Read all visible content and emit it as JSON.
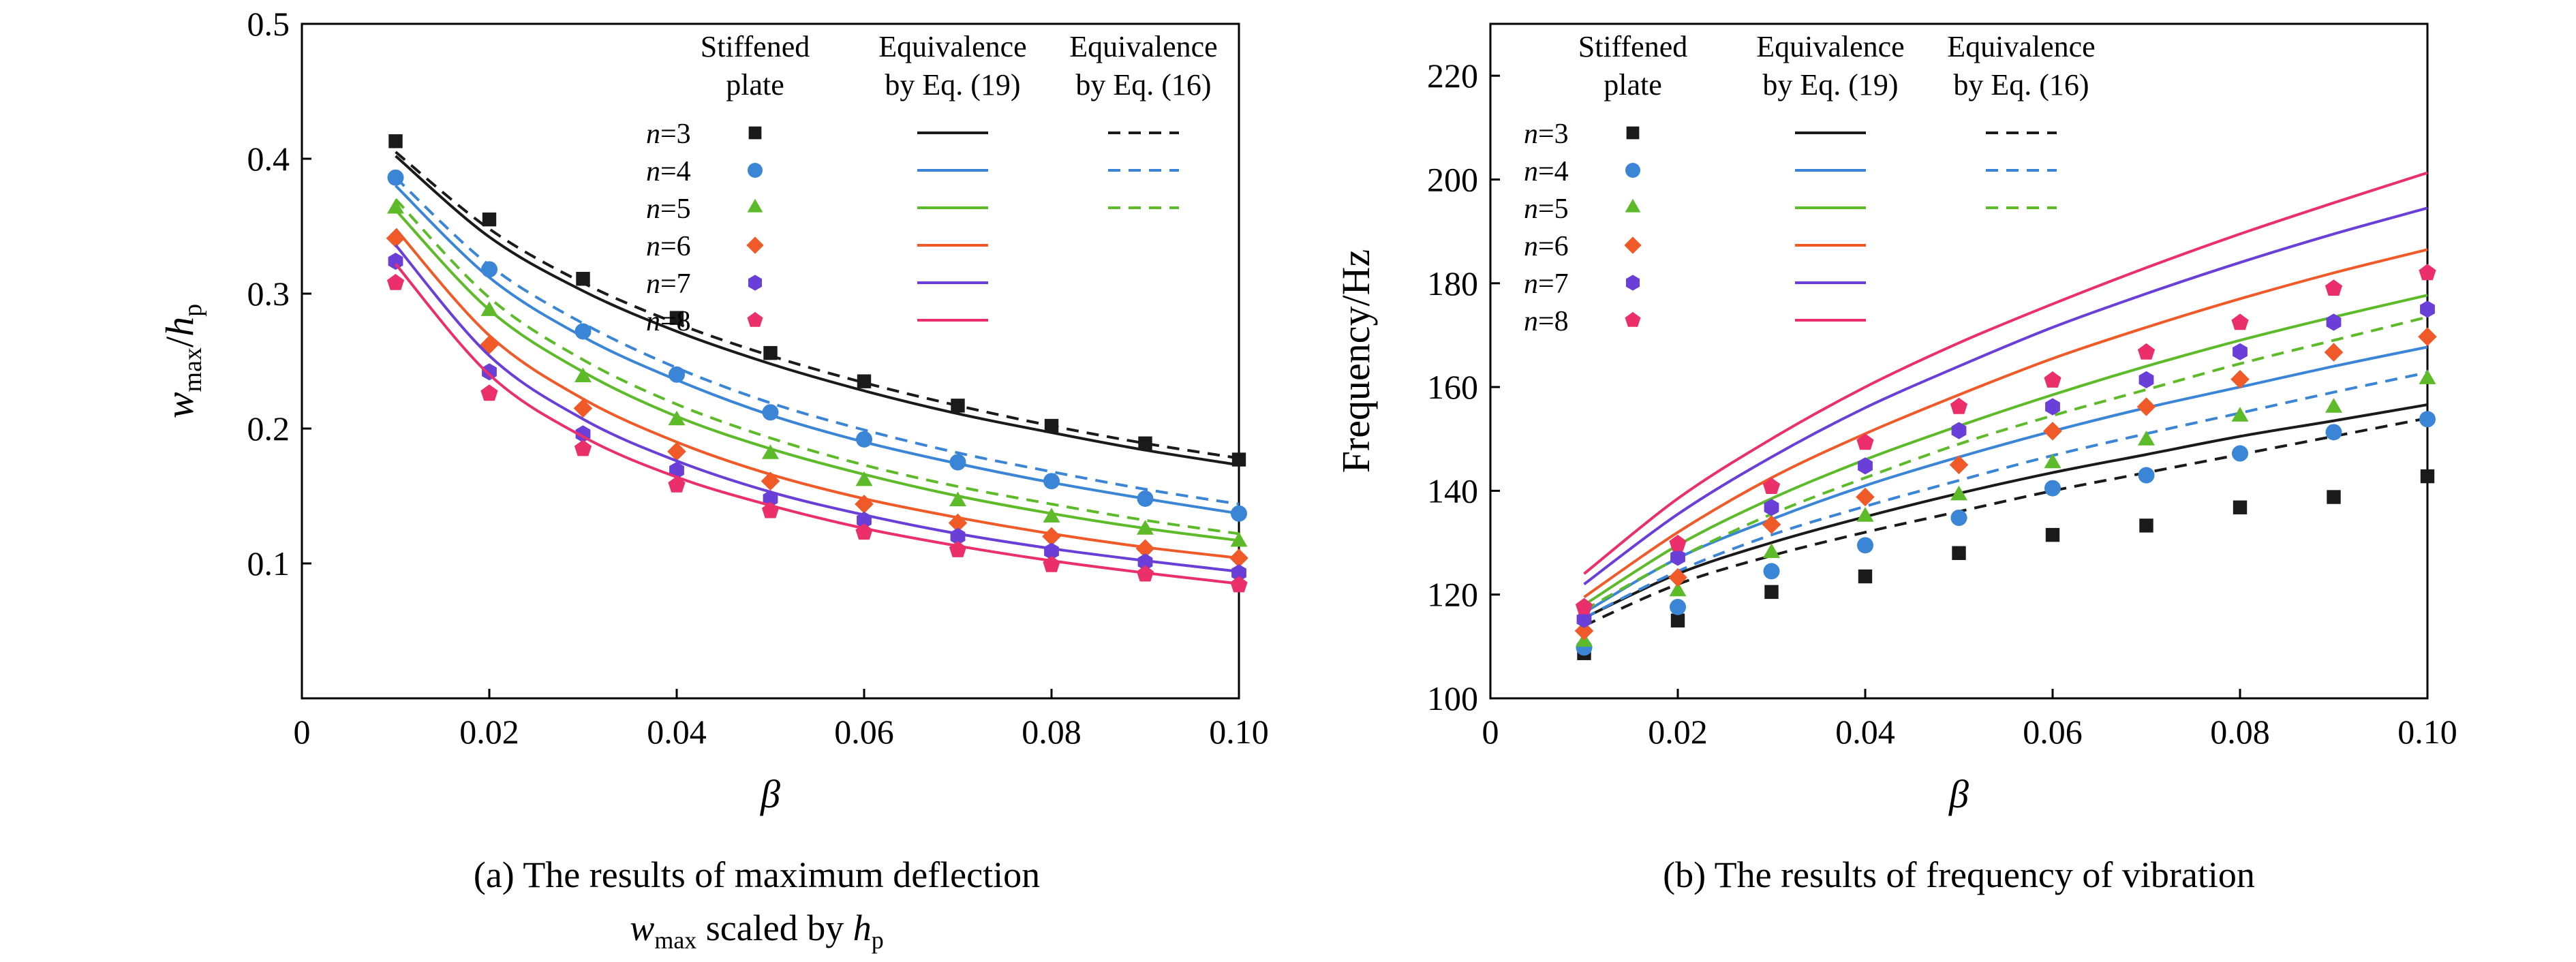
{
  "chart_data": [
    {
      "type": "scatter",
      "panel_caption_line1": "(a) The results of maximum deflection",
      "panel_caption_line2": {
        "main": "w",
        "main_sub": "max",
        "mid": " scaled by ",
        "tail": "h",
        "tail_sub": "p"
      },
      "xlabel": "β",
      "ylabel": {
        "main": "w",
        "main_sub": "max",
        "sep": "/",
        "tail": "h",
        "tail_sub": "p"
      },
      "xlim": [
        0,
        0.1
      ],
      "ylim": [
        0,
        0.5
      ],
      "xticks": [
        0,
        0.02,
        0.04,
        0.06,
        0.08,
        0.1
      ],
      "xtick_labels": [
        "0",
        "0.02",
        "0.04",
        "0.06",
        "0.08",
        "0.10"
      ],
      "yticks": [
        0.1,
        0.2,
        0.3,
        0.4,
        0.5
      ],
      "ytick_labels": [
        "0.1",
        "0.2",
        "0.3",
        "0.4",
        "0.5"
      ],
      "legend": {
        "placement": "top-right",
        "headers": [
          [
            "Stiffened",
            "plate"
          ],
          [
            "Equivalence",
            "by Eq. (19)"
          ],
          [
            "Equivalence",
            "by Eq. (16)"
          ]
        ],
        "rows": [
          "n=3",
          "n=4",
          "n=5",
          "n=6",
          "n=7",
          "n=8"
        ],
        "dashed_rows": 3
      },
      "x": [
        0.01,
        0.02,
        0.03,
        0.04,
        0.05,
        0.06,
        0.07,
        0.08,
        0.09,
        0.1
      ],
      "series": [
        {
          "name": "n=3",
          "color": "#1a1a1a",
          "marker": "square",
          "stiffened": [
            0.413,
            0.355,
            0.311,
            0.282,
            0.256,
            0.235,
            0.217,
            0.202,
            0.189,
            0.177
          ],
          "eq19": [
            0.402,
            0.342,
            0.302,
            0.272,
            0.248,
            0.228,
            0.211,
            0.197,
            0.184,
            0.173
          ],
          "eq16": [
            0.405,
            0.348,
            0.308,
            0.278,
            0.254,
            0.234,
            0.217,
            0.202,
            0.189,
            0.178
          ]
        },
        {
          "name": "n=4",
          "color": "#3a85d6",
          "marker": "circle",
          "stiffened": [
            0.386,
            0.318,
            0.272,
            0.24,
            0.212,
            0.192,
            0.175,
            0.161,
            0.148,
            0.137
          ],
          "eq19": [
            0.38,
            0.312,
            0.268,
            0.236,
            0.21,
            0.19,
            0.174,
            0.16,
            0.148,
            0.137
          ],
          "eq16": [
            0.386,
            0.321,
            0.278,
            0.245,
            0.219,
            0.199,
            0.182,
            0.168,
            0.155,
            0.144
          ]
        },
        {
          "name": "n=5",
          "color": "#5dbb2a",
          "marker": "triangle",
          "stiffened": [
            0.363,
            0.287,
            0.238,
            0.206,
            0.181,
            0.161,
            0.146,
            0.134,
            0.125,
            0.116
          ],
          "eq19": [
            0.362,
            0.288,
            0.242,
            0.209,
            0.185,
            0.166,
            0.15,
            0.137,
            0.126,
            0.117
          ],
          "eq16": [
            0.37,
            0.297,
            0.251,
            0.218,
            0.193,
            0.173,
            0.157,
            0.144,
            0.132,
            0.122
          ]
        },
        {
          "name": "n=6",
          "color": "#f05a28",
          "marker": "diamond",
          "stiffened": [
            0.341,
            0.262,
            0.215,
            0.183,
            0.161,
            0.144,
            0.13,
            0.12,
            0.111,
            0.104
          ],
          "eq19": [
            0.348,
            0.269,
            0.222,
            0.19,
            0.166,
            0.148,
            0.134,
            0.122,
            0.112,
            0.104
          ]
        },
        {
          "name": "n=7",
          "color": "#6a3fd8",
          "marker": "hexagon",
          "stiffened": [
            0.324,
            0.242,
            0.196,
            0.169,
            0.148,
            0.132,
            0.12,
            0.109,
            0.101,
            0.093
          ],
          "eq19": [
            0.336,
            0.254,
            0.207,
            0.176,
            0.153,
            0.136,
            0.122,
            0.111,
            0.102,
            0.094
          ]
        },
        {
          "name": "n=8",
          "color": "#ea2f6a",
          "marker": "pentagon",
          "stiffened": [
            0.308,
            0.226,
            0.185,
            0.158,
            0.139,
            0.123,
            0.11,
            0.099,
            0.092,
            0.084
          ],
          "eq19": [
            0.322,
            0.24,
            0.194,
            0.164,
            0.143,
            0.126,
            0.113,
            0.102,
            0.093,
            0.085
          ]
        }
      ]
    },
    {
      "type": "scatter",
      "panel_caption_line1": "(b) The results of frequency of vibration",
      "xlabel": "β",
      "ylabel": {
        "main": "Frequency/Hz"
      },
      "xlim": [
        0,
        0.1
      ],
      "ylim": [
        100,
        230
      ],
      "xticks": [
        0,
        0.02,
        0.04,
        0.06,
        0.08,
        0.1
      ],
      "xtick_labels": [
        "0",
        "0.02",
        "0.04",
        "0.06",
        "0.08",
        "0.10"
      ],
      "yticks": [
        100,
        120,
        140,
        160,
        180,
        200,
        220
      ],
      "ytick_labels": [
        "100",
        "120",
        "140",
        "160",
        "180",
        "200",
        "220"
      ],
      "legend": {
        "placement": "top-left",
        "headers": [
          [
            "Stiffened",
            "plate"
          ],
          [
            "Equivalence",
            "by Eq. (19)"
          ],
          [
            "Equivalence",
            "by Eq. (16)"
          ]
        ],
        "rows": [
          "n=3",
          "n=4",
          "n=5",
          "n=6",
          "n=7",
          "n=8"
        ],
        "dashed_rows": 3
      },
      "x": [
        0.01,
        0.02,
        0.03,
        0.04,
        0.05,
        0.06,
        0.07,
        0.08,
        0.09,
        0.1
      ],
      "series": [
        {
          "name": "n=3",
          "color": "#1a1a1a",
          "marker": "square",
          "stiffened": [
            108.7,
            115.0,
            120.5,
            123.5,
            128.0,
            131.5,
            133.3,
            136.8,
            138.8,
            142.8
          ],
          "eq19": [
            115.5,
            124.0,
            130.0,
            135.0,
            139.5,
            143.5,
            147.0,
            150.5,
            153.5,
            156.6
          ],
          "eq16": [
            114.0,
            122.0,
            127.5,
            132.0,
            136.0,
            140.0,
            143.5,
            147.0,
            150.5,
            154.0
          ]
        },
        {
          "name": "n=4",
          "color": "#3a85d6",
          "marker": "circle",
          "stiffened": [
            109.8,
            117.6,
            124.5,
            129.5,
            134.8,
            140.5,
            143.0,
            147.2,
            151.3,
            153.8
          ],
          "eq19": [
            116.5,
            127.0,
            134.5,
            141.0,
            146.5,
            151.5,
            156.0,
            160.0,
            164.0,
            167.7
          ],
          "eq16": [
            115.5,
            124.5,
            131.5,
            137.0,
            142.0,
            146.8,
            151.0,
            155.0,
            159.0,
            162.8
          ]
        },
        {
          "name": "n=5",
          "color": "#5dbb2a",
          "marker": "triangle",
          "stiffened": [
            110.9,
            120.6,
            128.0,
            135.0,
            139.1,
            145.3,
            149.7,
            154.3,
            156.0,
            161.5
          ],
          "eq19": [
            118.0,
            129.5,
            138.5,
            146.0,
            152.5,
            158.5,
            164.0,
            169.0,
            173.5,
            177.7
          ],
          "eq16": [
            117.0,
            127.0,
            135.5,
            142.5,
            149.0,
            154.5,
            159.5,
            164.5,
            169.0,
            173.5
          ]
        },
        {
          "name": "n=6",
          "color": "#f05a28",
          "marker": "diamond",
          "stiffened": [
            113.0,
            123.3,
            133.5,
            138.8,
            145.0,
            151.5,
            156.2,
            161.5,
            166.7,
            169.7
          ],
          "eq19": [
            119.5,
            132.0,
            142.5,
            151.0,
            158.5,
            165.5,
            171.5,
            177.0,
            182.0,
            186.5
          ]
        },
        {
          "name": "n=7",
          "color": "#6a3fd8",
          "marker": "hexagon",
          "stiffened": [
            115.2,
            127.2,
            136.8,
            144.8,
            151.6,
            156.2,
            161.4,
            166.8,
            172.5,
            175.0
          ],
          "eq19": [
            122.0,
            135.5,
            146.5,
            156.0,
            164.0,
            171.5,
            178.0,
            184.0,
            189.5,
            194.5
          ]
        },
        {
          "name": "n=8",
          "color": "#ea2f6a",
          "marker": "pentagon",
          "stiffened": [
            117.6,
            129.8,
            140.8,
            149.3,
            156.2,
            161.3,
            166.7,
            172.4,
            179.0,
            182.0
          ],
          "eq19": [
            124.0,
            138.5,
            150.0,
            160.0,
            168.5,
            176.0,
            183.0,
            189.5,
            195.5,
            201.3
          ]
        }
      ]
    }
  ]
}
